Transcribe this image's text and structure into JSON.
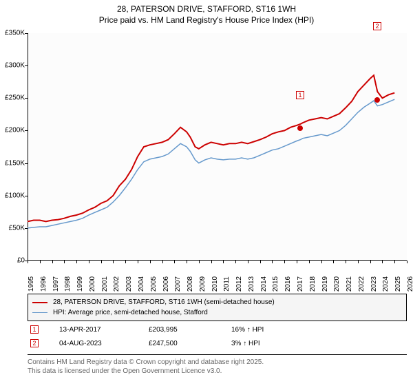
{
  "title": {
    "line1": "28, PATERSON DRIVE, STAFFORD, ST16 1WH",
    "line2": "Price paid vs. HM Land Registry's House Price Index (HPI)"
  },
  "chart": {
    "type": "line",
    "background_color": "#fcfcfc",
    "ylim": [
      0,
      350000
    ],
    "ytick_step": 50000,
    "ytick_labels": [
      "£0",
      "£50K",
      "£100K",
      "£150K",
      "£200K",
      "£250K",
      "£300K",
      "£350K"
    ],
    "xlim": [
      1995,
      2026
    ],
    "xtick_step": 1,
    "xtick_labels": [
      "1995",
      "1996",
      "1997",
      "1998",
      "1999",
      "2000",
      "2001",
      "2002",
      "2003",
      "2004",
      "2005",
      "2006",
      "2007",
      "2008",
      "2009",
      "2010",
      "2011",
      "2012",
      "2013",
      "2014",
      "2015",
      "2016",
      "2017",
      "2018",
      "2019",
      "2020",
      "2021",
      "2022",
      "2023",
      "2024",
      "2025",
      "2026"
    ],
    "series": [
      {
        "name": "price_paid",
        "color": "#cc0000",
        "line_width": 2,
        "data": [
          [
            1995,
            60000
          ],
          [
            1995.5,
            62000
          ],
          [
            1996,
            62000
          ],
          [
            1996.5,
            60000
          ],
          [
            1997,
            62000
          ],
          [
            1997.5,
            63000
          ],
          [
            1998,
            65000
          ],
          [
            1998.5,
            68000
          ],
          [
            1999,
            70000
          ],
          [
            1999.5,
            73000
          ],
          [
            2000,
            78000
          ],
          [
            2000.5,
            82000
          ],
          [
            2001,
            88000
          ],
          [
            2001.5,
            92000
          ],
          [
            2002,
            100000
          ],
          [
            2002.5,
            115000
          ],
          [
            2003,
            125000
          ],
          [
            2003.5,
            140000
          ],
          [
            2004,
            160000
          ],
          [
            2004.5,
            175000
          ],
          [
            2005,
            178000
          ],
          [
            2005.5,
            180000
          ],
          [
            2006,
            182000
          ],
          [
            2006.5,
            186000
          ],
          [
            2007,
            195000
          ],
          [
            2007.5,
            205000
          ],
          [
            2008,
            198000
          ],
          [
            2008.3,
            190000
          ],
          [
            2008.7,
            175000
          ],
          [
            2009,
            172000
          ],
          [
            2009.5,
            178000
          ],
          [
            2010,
            182000
          ],
          [
            2010.5,
            180000
          ],
          [
            2011,
            178000
          ],
          [
            2011.5,
            180000
          ],
          [
            2012,
            180000
          ],
          [
            2012.5,
            182000
          ],
          [
            2013,
            180000
          ],
          [
            2013.5,
            183000
          ],
          [
            2014,
            186000
          ],
          [
            2014.5,
            190000
          ],
          [
            2015,
            195000
          ],
          [
            2015.5,
            198000
          ],
          [
            2016,
            200000
          ],
          [
            2016.5,
            205000
          ],
          [
            2017,
            208000
          ],
          [
            2017.3,
            210000
          ],
          [
            2017.5,
            212000
          ],
          [
            2018,
            216000
          ],
          [
            2018.5,
            218000
          ],
          [
            2019,
            220000
          ],
          [
            2019.5,
            218000
          ],
          [
            2020,
            222000
          ],
          [
            2020.5,
            226000
          ],
          [
            2021,
            235000
          ],
          [
            2021.5,
            245000
          ],
          [
            2022,
            260000
          ],
          [
            2022.5,
            270000
          ],
          [
            2023,
            280000
          ],
          [
            2023.3,
            285000
          ],
          [
            2023.6,
            260000
          ],
          [
            2024,
            250000
          ],
          [
            2024.5,
            255000
          ],
          [
            2025,
            258000
          ]
        ]
      },
      {
        "name": "hpi",
        "color": "#6699cc",
        "line_width": 1.5,
        "data": [
          [
            1995,
            50000
          ],
          [
            1995.5,
            51000
          ],
          [
            1996,
            52000
          ],
          [
            1996.5,
            52000
          ],
          [
            1997,
            54000
          ],
          [
            1997.5,
            56000
          ],
          [
            1998,
            58000
          ],
          [
            1998.5,
            60000
          ],
          [
            1999,
            62000
          ],
          [
            1999.5,
            65000
          ],
          [
            2000,
            70000
          ],
          [
            2000.5,
            74000
          ],
          [
            2001,
            78000
          ],
          [
            2001.5,
            82000
          ],
          [
            2002,
            90000
          ],
          [
            2002.5,
            100000
          ],
          [
            2003,
            112000
          ],
          [
            2003.5,
            125000
          ],
          [
            2004,
            140000
          ],
          [
            2004.5,
            152000
          ],
          [
            2005,
            156000
          ],
          [
            2005.5,
            158000
          ],
          [
            2006,
            160000
          ],
          [
            2006.5,
            164000
          ],
          [
            2007,
            172000
          ],
          [
            2007.5,
            180000
          ],
          [
            2008,
            175000
          ],
          [
            2008.3,
            168000
          ],
          [
            2008.7,
            155000
          ],
          [
            2009,
            150000
          ],
          [
            2009.5,
            155000
          ],
          [
            2010,
            158000
          ],
          [
            2010.5,
            156000
          ],
          [
            2011,
            155000
          ],
          [
            2011.5,
            156000
          ],
          [
            2012,
            156000
          ],
          [
            2012.5,
            158000
          ],
          [
            2013,
            156000
          ],
          [
            2013.5,
            158000
          ],
          [
            2014,
            162000
          ],
          [
            2014.5,
            166000
          ],
          [
            2015,
            170000
          ],
          [
            2015.5,
            172000
          ],
          [
            2016,
            176000
          ],
          [
            2016.5,
            180000
          ],
          [
            2017,
            184000
          ],
          [
            2017.3,
            186000
          ],
          [
            2017.5,
            188000
          ],
          [
            2018,
            190000
          ],
          [
            2018.5,
            192000
          ],
          [
            2019,
            194000
          ],
          [
            2019.5,
            192000
          ],
          [
            2020,
            196000
          ],
          [
            2020.5,
            200000
          ],
          [
            2021,
            208000
          ],
          [
            2021.5,
            218000
          ],
          [
            2022,
            228000
          ],
          [
            2022.5,
            236000
          ],
          [
            2023,
            242000
          ],
          [
            2023.3,
            246000
          ],
          [
            2023.6,
            238000
          ],
          [
            2024,
            240000
          ],
          [
            2024.5,
            244000
          ],
          [
            2025,
            248000
          ]
        ]
      }
    ],
    "sale_markers": [
      {
        "id": "1",
        "x": 2017.28,
        "y": 203995,
        "color": "#cc0000",
        "marker_y_offset": -0.12
      },
      {
        "id": "2",
        "x": 2023.59,
        "y": 247500,
        "color": "#cc0000",
        "marker_y_offset": -0.3
      }
    ]
  },
  "legend": {
    "items": [
      {
        "color": "#cc0000",
        "width": 2,
        "label": "28, PATERSON DRIVE, STAFFORD, ST16 1WH (semi-detached house)"
      },
      {
        "color": "#6699cc",
        "width": 1.5,
        "label": "HPI: Average price, semi-detached house, Stafford"
      }
    ]
  },
  "sales": [
    {
      "id": "1",
      "color": "#cc0000",
      "date": "13-APR-2017",
      "price": "£203,995",
      "diff": "16% ↑ HPI"
    },
    {
      "id": "2",
      "color": "#cc0000",
      "date": "04-AUG-2023",
      "price": "£247,500",
      "diff": "3% ↑ HPI"
    }
  ],
  "attribution": {
    "line1": "Contains HM Land Registry data © Crown copyright and database right 2025.",
    "line2": "This data is licensed under the Open Government Licence v3.0."
  }
}
